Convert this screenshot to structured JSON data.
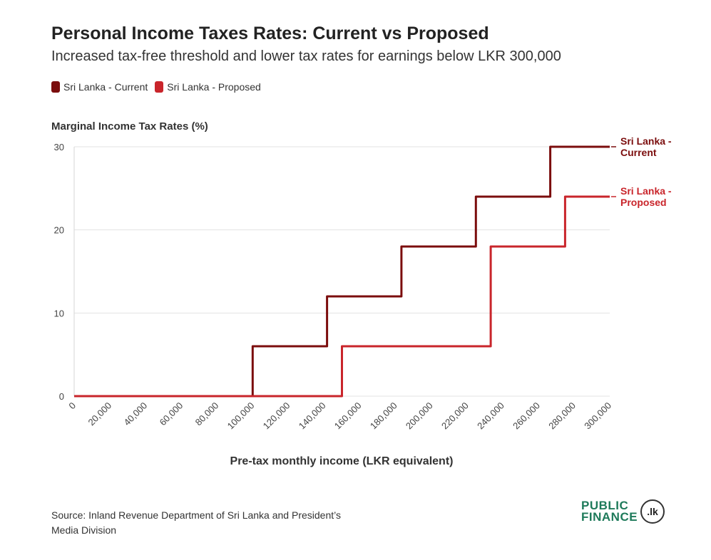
{
  "header": {
    "title": "Personal Income Taxes Rates: Current vs Proposed",
    "subtitle": "Increased tax-free threshold and lower tax rates for earnings below LKR 300,000"
  },
  "footer": {
    "source_line1": "Source: Inland Revenue Department of Sri Lanka and President’s",
    "source_line2": "Media Division",
    "logo_line1": "PUBLIC",
    "logo_line2": "FINANCE",
    "logo_badge": ".lk"
  },
  "chart_data": {
    "type": "line",
    "title": "Personal Income Taxes Rates: Current vs Proposed",
    "subtitle": "Increased tax-free threshold and lower tax rates for earnings below LKR 300,000",
    "xlabel": "Pre-tax monthly income (LKR equivalent)",
    "ylabel": "Marginal Income Tax Rates (%)",
    "xlim": [
      0,
      300000
    ],
    "ylim": [
      0,
      30
    ],
    "x_ticks": [
      0,
      20000,
      40000,
      60000,
      80000,
      100000,
      120000,
      140000,
      160000,
      180000,
      200000,
      220000,
      240000,
      260000,
      280000,
      300000
    ],
    "x_tick_labels": [
      "0",
      "20,000",
      "40,000",
      "60,000",
      "80,000",
      "100,000",
      "120,000",
      "140,000",
      "160,000",
      "180,000",
      "200,000",
      "220,000",
      "240,000",
      "260,000",
      "280,000",
      "300,000"
    ],
    "y_ticks": [
      0,
      10,
      20,
      30
    ],
    "y_tick_labels": [
      "0",
      "10",
      "20",
      "30"
    ],
    "grid": true,
    "legend": "top-left",
    "series": [
      {
        "name": "Sri Lanka - Current",
        "end_label_line1": "Sri Lanka -",
        "end_label_line2": "Current",
        "color": "#7b0d0d",
        "points": [
          [
            0,
            0
          ],
          [
            100000,
            0
          ],
          [
            100000,
            6
          ],
          [
            141667,
            6
          ],
          [
            141667,
            12
          ],
          [
            183333,
            12
          ],
          [
            183333,
            18
          ],
          [
            225000,
            18
          ],
          [
            225000,
            24
          ],
          [
            266667,
            24
          ],
          [
            266667,
            30
          ],
          [
            300000,
            30
          ]
        ]
      },
      {
        "name": "Sri Lanka - Proposed",
        "end_label_line1": "Sri Lanka -",
        "end_label_line2": "Proposed",
        "color": "#c9252b",
        "points": [
          [
            0,
            0
          ],
          [
            150000,
            0
          ],
          [
            150000,
            6
          ],
          [
            233333,
            6
          ],
          [
            233333,
            18
          ],
          [
            275000,
            18
          ],
          [
            275000,
            24
          ],
          [
            300000,
            24
          ]
        ]
      }
    ]
  }
}
